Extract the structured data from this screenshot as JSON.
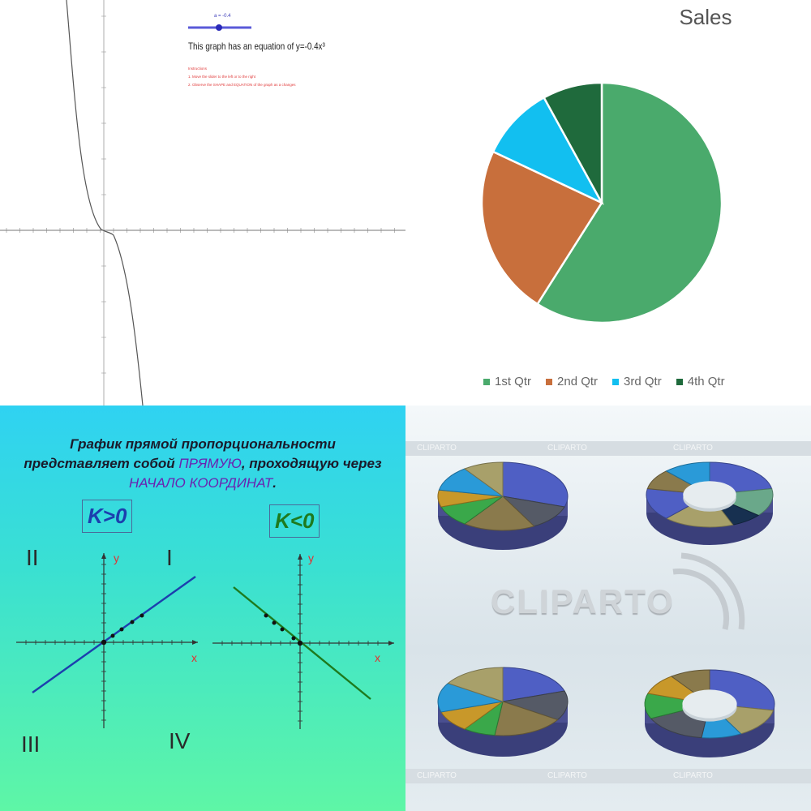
{
  "cubic_panel": {
    "slider_value": "a = -0.4",
    "equation_text": "This graph has an equation of y=-0.4x³",
    "notes": [
      "Instructions",
      "1. Move the slider to the left or to the right",
      "2. Observe the SHAPE and EQUATION of the graph as a changes"
    ]
  },
  "chart_data": [
    {
      "type": "pie",
      "title": "Sales",
      "categories": [
        "1st Qtr",
        "2nd Qtr",
        "3rd Qtr",
        "4th Qtr"
      ],
      "values": [
        59,
        23,
        10,
        8
      ],
      "colors": [
        "#4aaa6c",
        "#c86f3c",
        "#12bff0",
        "#1f6a3c"
      ],
      "legend_position": "bottom"
    }
  ],
  "proportionality_slide": {
    "title_part1": "График прямой пропорциональности",
    "title_part2": "представляет собой ",
    "title_highlight1": "ПРЯМУЮ",
    "title_part3": ", проходящую через",
    "title_highlight2": "НАЧАЛО КООРДИНАТ",
    "title_end": ".",
    "k_positive": "K>0",
    "k_negative": "K<0",
    "quadrants": [
      "I",
      "II",
      "III",
      "IV"
    ],
    "axis_x": "x",
    "axis_y": "y",
    "colors": {
      "k_positive": "#1c3fae",
      "k_negative": "#1e7a1e"
    }
  },
  "cliparto_panel": {
    "watermark": "CLIPARTO",
    "strip_text": "CLIPARTO"
  }
}
